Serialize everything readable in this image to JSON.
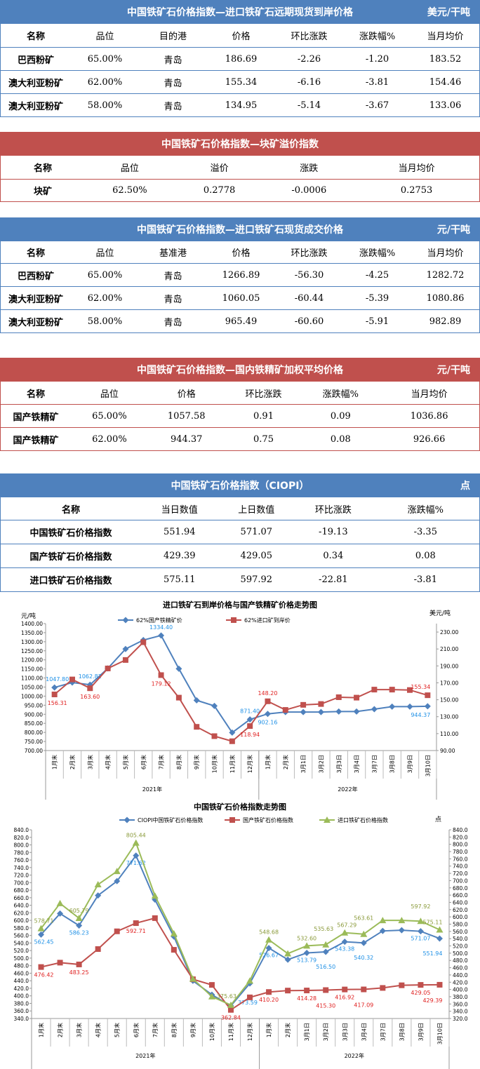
{
  "tables": [
    {
      "id": "import-forward",
      "theme": "blue",
      "title": "中国铁矿石价格指数—进口铁矿石远期现货到岸价格",
      "unit": "美元/干吨",
      "headers": [
        "名称",
        "品位",
        "目的港",
        "价格",
        "环比涨跌",
        "涨跌幅%",
        "当月均价"
      ],
      "rows": [
        [
          "巴西粉矿",
          "65.00%",
          "青岛",
          "186.69",
          "-2.26",
          "-1.20",
          "183.52"
        ],
        [
          "澳大利亚粉矿",
          "62.00%",
          "青岛",
          "155.34",
          "-6.16",
          "-3.81",
          "154.46"
        ],
        [
          "澳大利亚粉矿",
          "58.00%",
          "青岛",
          "134.95",
          "-5.14",
          "-3.67",
          "133.06"
        ]
      ]
    },
    {
      "id": "lump-premium",
      "theme": "red",
      "title": "中国铁矿石价格指数—块矿溢价指数",
      "unit": "",
      "headers": [
        "名称",
        "品位",
        "溢价",
        "涨跌",
        "当月均价"
      ],
      "rows": [
        [
          "块矿",
          "62.50%",
          "0.2778",
          "-0.0006",
          "0.2753"
        ]
      ]
    },
    {
      "id": "import-spot",
      "theme": "blue",
      "title": "中国铁矿石价格指数—进口铁矿石现货成交价格",
      "unit": "元/干吨",
      "headers": [
        "名称",
        "品位",
        "基准港",
        "价格",
        "环比涨跌",
        "涨跌幅%",
        "当月均价"
      ],
      "rows": [
        [
          "巴西粉矿",
          "65.00%",
          "青岛",
          "1266.89",
          "-56.30",
          "-4.25",
          "1282.72"
        ],
        [
          "澳大利亚粉矿",
          "62.00%",
          "青岛",
          "1060.05",
          "-60.44",
          "-5.39",
          "1080.86"
        ],
        [
          "澳大利亚粉矿",
          "58.00%",
          "青岛",
          "965.49",
          "-60.60",
          "-5.91",
          "982.89"
        ]
      ]
    },
    {
      "id": "domestic-concentrate",
      "theme": "red",
      "title": "中国铁矿石价格指数—国内铁精矿加权平均价格",
      "unit": "元/干吨",
      "headers": [
        "名称",
        "品位",
        "价格",
        "环比涨跌",
        "涨跌幅%",
        "当月均价"
      ],
      "rows": [
        [
          "国产铁精矿",
          "65.00%",
          "1057.58",
          "0.91",
          "0.09",
          "1036.86"
        ],
        [
          "国产铁精矿",
          "62.00%",
          "944.37",
          "0.75",
          "0.08",
          "926.66"
        ]
      ]
    },
    {
      "id": "ciopi",
      "theme": "blue",
      "title": "中国铁矿石价格指数（CIOPI）",
      "unit": "点",
      "headers": [
        "名称",
        "当日数值",
        "上日数值",
        "环比涨跌",
        "涨跌幅%"
      ],
      "rows": [
        [
          "中国铁矿石价格指数",
          "551.94",
          "571.07",
          "-19.13",
          "-3.35"
        ],
        [
          "国产铁矿石价格指数",
          "429.39",
          "429.05",
          "0.34",
          "0.08"
        ],
        [
          "进口铁矿石价格指数",
          "575.11",
          "597.92",
          "-22.81",
          "-3.81"
        ]
      ]
    }
  ],
  "chart_data": [
    {
      "type": "line",
      "title": "进口铁矿石到岸价格与国产铁精矿价格走势图",
      "ylabel": "元/吨",
      "y2label": "美元/吨",
      "ylim": [
        700,
        1400
      ],
      "y2lim": [
        90,
        240
      ],
      "yticks": [
        700,
        750,
        800,
        850,
        900,
        950,
        1000,
        1050,
        1100,
        1150,
        1200,
        1250,
        1300,
        1350,
        1400
      ],
      "y2ticks": [
        90,
        110,
        130,
        150,
        170,
        190,
        210,
        230
      ],
      "tick_decimals": 2,
      "categories": [
        "1月末",
        "2月末",
        "3月末",
        "4月末",
        "5月末",
        "6月末",
        "7月末",
        "8月末",
        "9月末",
        "10月末",
        "11月末",
        "12月末",
        "1月末",
        "2月末",
        "3月1日",
        "3月2日",
        "3月3日",
        "3月4日",
        "3月7日",
        "3月8日",
        "3月9日",
        "3月10日"
      ],
      "groups": [
        {
          "label": "2021年",
          "count": 12
        },
        {
          "label": "2022年",
          "count": 10
        }
      ],
      "legend_placement": "top",
      "series": [
        {
          "name": "62%国产铁精矿价",
          "axis": "left",
          "color": "#4f81bd",
          "label_color": "#1e90e6",
          "marker": "diamond",
          "values": [
            1047.8,
            1075,
            1062.82,
            1153,
            1260,
            1309,
            1334.4,
            1151,
            977,
            946,
            799,
            871.4,
            902.16,
            912,
            912,
            912,
            915,
            915,
            928,
            942,
            942,
            944.37
          ],
          "data_labels": [
            "1047.80",
            null,
            "1062.82",
            null,
            null,
            null,
            "1334.40",
            null,
            null,
            null,
            null,
            "871.40",
            "902.16",
            null,
            null,
            null,
            null,
            null,
            null,
            null,
            null,
            "944.37"
          ]
        },
        {
          "name": "62%进口矿到岸价",
          "axis": "right",
          "color": "#c0504d",
          "label_color": "#e02020",
          "marker": "square",
          "values": [
            156.31,
            174,
            163.6,
            187,
            197,
            218,
            179.12,
            152.5,
            118,
            107,
            101,
            118.94,
            148.2,
            138,
            144,
            145,
            153,
            152.5,
            162,
            162,
            161.5,
            155.34
          ],
          "data_labels": [
            "156.31",
            null,
            "163.60",
            null,
            null,
            null,
            "179.12",
            null,
            null,
            null,
            null,
            "118.94",
            "148.20",
            null,
            null,
            null,
            null,
            null,
            null,
            null,
            null,
            "155.34"
          ]
        }
      ]
    },
    {
      "type": "line",
      "title": "中国铁矿石价格指数走势图",
      "ylabel": "",
      "y2label": "点",
      "ylim": [
        340,
        840
      ],
      "y2lim": [
        320,
        840
      ],
      "yticks": [
        340,
        360,
        380,
        400,
        420,
        440,
        460,
        480,
        500,
        520,
        540,
        560,
        580,
        600,
        620,
        640,
        660,
        680,
        700,
        720,
        740,
        760,
        780,
        800,
        820,
        840
      ],
      "y2ticks": [
        320,
        340,
        360,
        380,
        400,
        420,
        440,
        460,
        480,
        500,
        520,
        540,
        560,
        580,
        600,
        620,
        640,
        660,
        680,
        700,
        720,
        740,
        760,
        780,
        800,
        820,
        840
      ],
      "tick_decimals": 1,
      "categories": [
        "1月末",
        "2月末",
        "3月末",
        "4月末",
        "5月末",
        "6月末",
        "7月末",
        "8月末",
        "9月末",
        "10月末",
        "11月末",
        "12月末",
        "1月末",
        "2月末",
        "3月1日",
        "3月2日",
        "3月3日",
        "3月4日",
        "3月7日",
        "3月8日",
        "3月9日",
        "3月10日"
      ],
      "groups": [
        {
          "label": "2021年",
          "count": 12
        },
        {
          "label": "2022年",
          "count": 10
        }
      ],
      "legend_placement": "top",
      "series": [
        {
          "name": "CIOPI中国铁矿石价格指数",
          "axis": "left",
          "color": "#4f81bd",
          "label_color": "#1e90e6",
          "marker": "diamond",
          "values": [
            562.45,
            618,
            586.23,
            666,
            704,
            771.62,
            655,
            557,
            440,
            403,
            373.59,
            433,
            526.67,
            496,
            513.79,
            516.5,
            543.38,
            540.32,
            572,
            574,
            571.07,
            551.94
          ],
          "data_labels": [
            "562.45",
            null,
            "586.23",
            null,
            null,
            "771.62",
            null,
            null,
            null,
            null,
            "373.59",
            null,
            "526.67",
            null,
            "513.79",
            "516.50",
            "543.38",
            "540.32",
            null,
            null,
            "571.07",
            "551.94"
          ]
        },
        {
          "name": "国产铁矿石价格指数",
          "axis": "left",
          "color": "#c0504d",
          "label_color": "#e02020",
          "marker": "square",
          "values": [
            476.42,
            488,
            483.25,
            524,
            571,
            592.71,
            606,
            522,
            444,
            429,
            362.84,
            396,
            410.2,
            414,
            414.28,
            415.3,
            416.92,
            417.09,
            421,
            428,
            429.05,
            429.39
          ],
          "data_labels": [
            "476.42",
            null,
            "483.25",
            null,
            null,
            "592.71",
            null,
            null,
            null,
            null,
            "362.84",
            null,
            "410.20",
            null,
            "414.28",
            "415.30",
            "416.92",
            "417.09",
            null,
            null,
            "429.05",
            "429.39"
          ]
        },
        {
          "name": "进口铁矿石价格指数",
          "axis": "left",
          "color": "#9bbb59",
          "label_color": "#8a9a3a",
          "marker": "triangle",
          "values": [
            578.71,
            645,
            605.79,
            695,
            730,
            805.44,
            665,
            565,
            445,
            398,
            375.63,
            440,
            548.68,
            512,
            532.6,
            535.63,
            567.29,
            563.61,
            600,
            600,
            597.92,
            575.11
          ],
          "data_labels": [
            "578.71",
            null,
            "605.79",
            null,
            null,
            "805.44",
            null,
            null,
            null,
            null,
            "375.63",
            null,
            "548.68",
            null,
            "532.60",
            "535.63",
            "567.29",
            "563.61",
            null,
            null,
            "597.92",
            "575.11"
          ]
        }
      ]
    }
  ]
}
